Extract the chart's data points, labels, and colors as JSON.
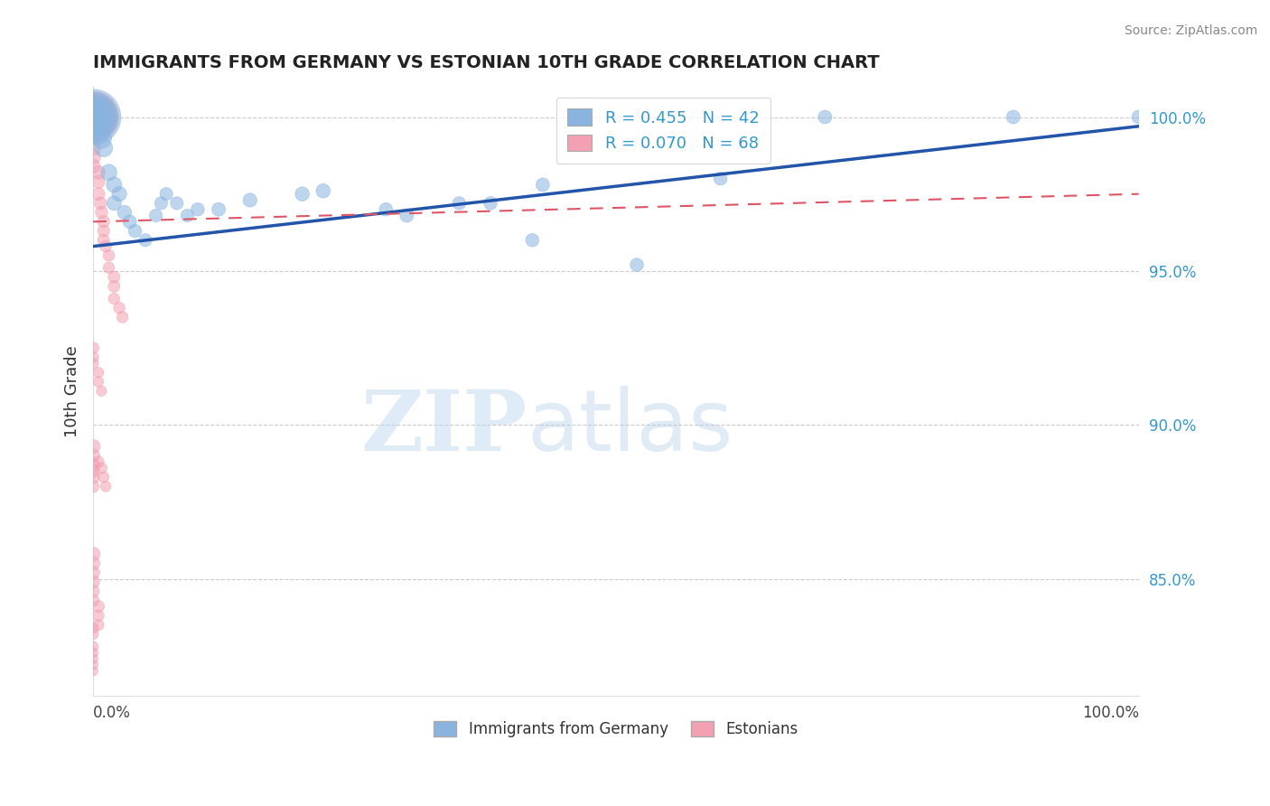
{
  "title": "IMMIGRANTS FROM GERMANY VS ESTONIAN 10TH GRADE CORRELATION CHART",
  "source": "Source: ZipAtlas.com",
  "ylabel": "10th Grade",
  "xlim": [
    0.0,
    1.0
  ],
  "ylim": [
    0.812,
    1.01
  ],
  "R_blue": 0.455,
  "N_blue": 42,
  "R_pink": 0.07,
  "N_pink": 68,
  "blue_color": "#89B4E0",
  "pink_color": "#F2A0B2",
  "blue_trend_color": "#2255AA",
  "pink_trend_color": "#DD5566",
  "blue_trend_x": [
    0.0,
    1.0
  ],
  "blue_trend_y": [
    0.958,
    0.997
  ],
  "pink_trend_x": [
    0.0,
    1.0
  ],
  "pink_trend_y": [
    0.966,
    0.975
  ],
  "yticks": [
    0.85,
    0.9,
    0.95,
    1.0
  ],
  "ytick_labels": [
    "85.0%",
    "90.0%",
    "95.0%",
    "100.0%"
  ],
  "grid_color": "#cccccc",
  "watermark_zip": "ZIP",
  "watermark_atlas": "atlas",
  "background_color": "#ffffff",
  "blue_x": [
    0.0,
    0.0,
    0.0,
    0.0,
    0.0,
    0.0,
    0.0,
    0.0,
    0.0,
    0.005,
    0.008,
    0.01,
    0.015,
    0.02,
    0.025,
    0.02,
    0.03,
    0.035,
    0.04,
    0.05,
    0.06,
    0.065,
    0.07,
    0.08,
    0.09,
    0.1,
    0.12,
    0.15,
    0.2,
    0.22,
    0.28,
    0.3,
    0.38,
    0.42,
    0.43,
    0.47,
    0.52,
    0.6,
    0.7,
    0.88,
    1.0,
    0.35
  ],
  "blue_y": [
    1.0,
    1.0,
    1.0,
    1.0,
    1.0,
    1.0,
    1.0,
    1.0,
    1.0,
    1.0,
    0.993,
    0.99,
    0.982,
    0.978,
    0.975,
    0.972,
    0.969,
    0.966,
    0.963,
    0.96,
    0.968,
    0.972,
    0.975,
    0.972,
    0.968,
    0.97,
    0.97,
    0.973,
    0.975,
    0.976,
    0.97,
    0.968,
    0.972,
    0.96,
    0.978,
    1.0,
    0.952,
    0.98,
    1.0,
    1.0,
    1.0,
    0.972
  ],
  "blue_s": [
    700,
    550,
    450,
    380,
    300,
    240,
    190,
    160,
    130,
    110,
    90,
    75,
    60,
    55,
    50,
    48,
    45,
    42,
    40,
    38,
    38,
    38,
    38,
    38,
    38,
    40,
    42,
    44,
    46,
    46,
    40,
    42,
    40,
    40,
    42,
    42,
    40,
    40,
    42,
    42,
    42,
    40
  ],
  "pink_x": [
    0.0,
    0.0,
    0.0,
    0.0,
    0.0,
    0.0,
    0.0,
    0.0,
    0.0,
    0.0,
    0.0,
    0.0,
    0.0,
    0.0,
    0.0,
    0.0,
    0.0,
    0.0,
    0.0,
    0.0,
    0.005,
    0.005,
    0.005,
    0.007,
    0.008,
    0.01,
    0.01,
    0.01,
    0.012,
    0.015,
    0.015,
    0.02,
    0.02,
    0.02,
    0.025,
    0.028,
    0.0,
    0.0,
    0.0,
    0.0,
    0.0,
    0.0,
    0.0,
    0.0,
    0.0,
    0.0,
    0.0,
    0.0,
    0.005,
    0.005,
    0.005,
    0.0,
    0.0,
    0.0,
    0.0,
    0.0,
    0.0,
    0.0,
    0.005,
    0.008,
    0.01,
    0.012,
    0.0,
    0.0,
    0.0,
    0.005,
    0.005,
    0.008
  ],
  "pink_y": [
    1.0,
    1.0,
    1.0,
    1.0,
    1.0,
    1.0,
    1.0,
    1.0,
    1.0,
    1.0,
    1.0,
    1.0,
    1.0,
    1.0,
    1.0,
    0.997,
    0.994,
    0.99,
    0.987,
    0.984,
    0.982,
    0.979,
    0.975,
    0.972,
    0.969,
    0.966,
    0.963,
    0.96,
    0.958,
    0.955,
    0.951,
    0.948,
    0.945,
    0.941,
    0.938,
    0.935,
    0.893,
    0.89,
    0.887,
    0.885,
    0.883,
    0.88,
    0.858,
    0.855,
    0.852,
    0.849,
    0.846,
    0.843,
    0.841,
    0.838,
    0.835,
    0.834,
    0.832,
    0.828,
    0.826,
    0.824,
    0.822,
    0.82,
    0.888,
    0.886,
    0.883,
    0.88,
    0.925,
    0.922,
    0.92,
    0.917,
    0.914,
    0.911
  ],
  "pink_s": [
    600,
    500,
    450,
    400,
    350,
    300,
    250,
    220,
    190,
    170,
    150,
    130,
    110,
    95,
    80,
    70,
    60,
    55,
    50,
    46,
    42,
    40,
    38,
    36,
    35,
    34,
    33,
    32,
    31,
    30,
    30,
    32,
    32,
    30,
    30,
    30,
    45,
    42,
    40,
    38,
    36,
    34,
    45,
    42,
    40,
    38,
    36,
    34,
    32,
    30,
    28,
    27,
    26,
    25,
    24,
    23,
    22,
    21,
    30,
    28,
    27,
    26,
    30,
    28,
    27,
    26,
    25,
    24
  ]
}
